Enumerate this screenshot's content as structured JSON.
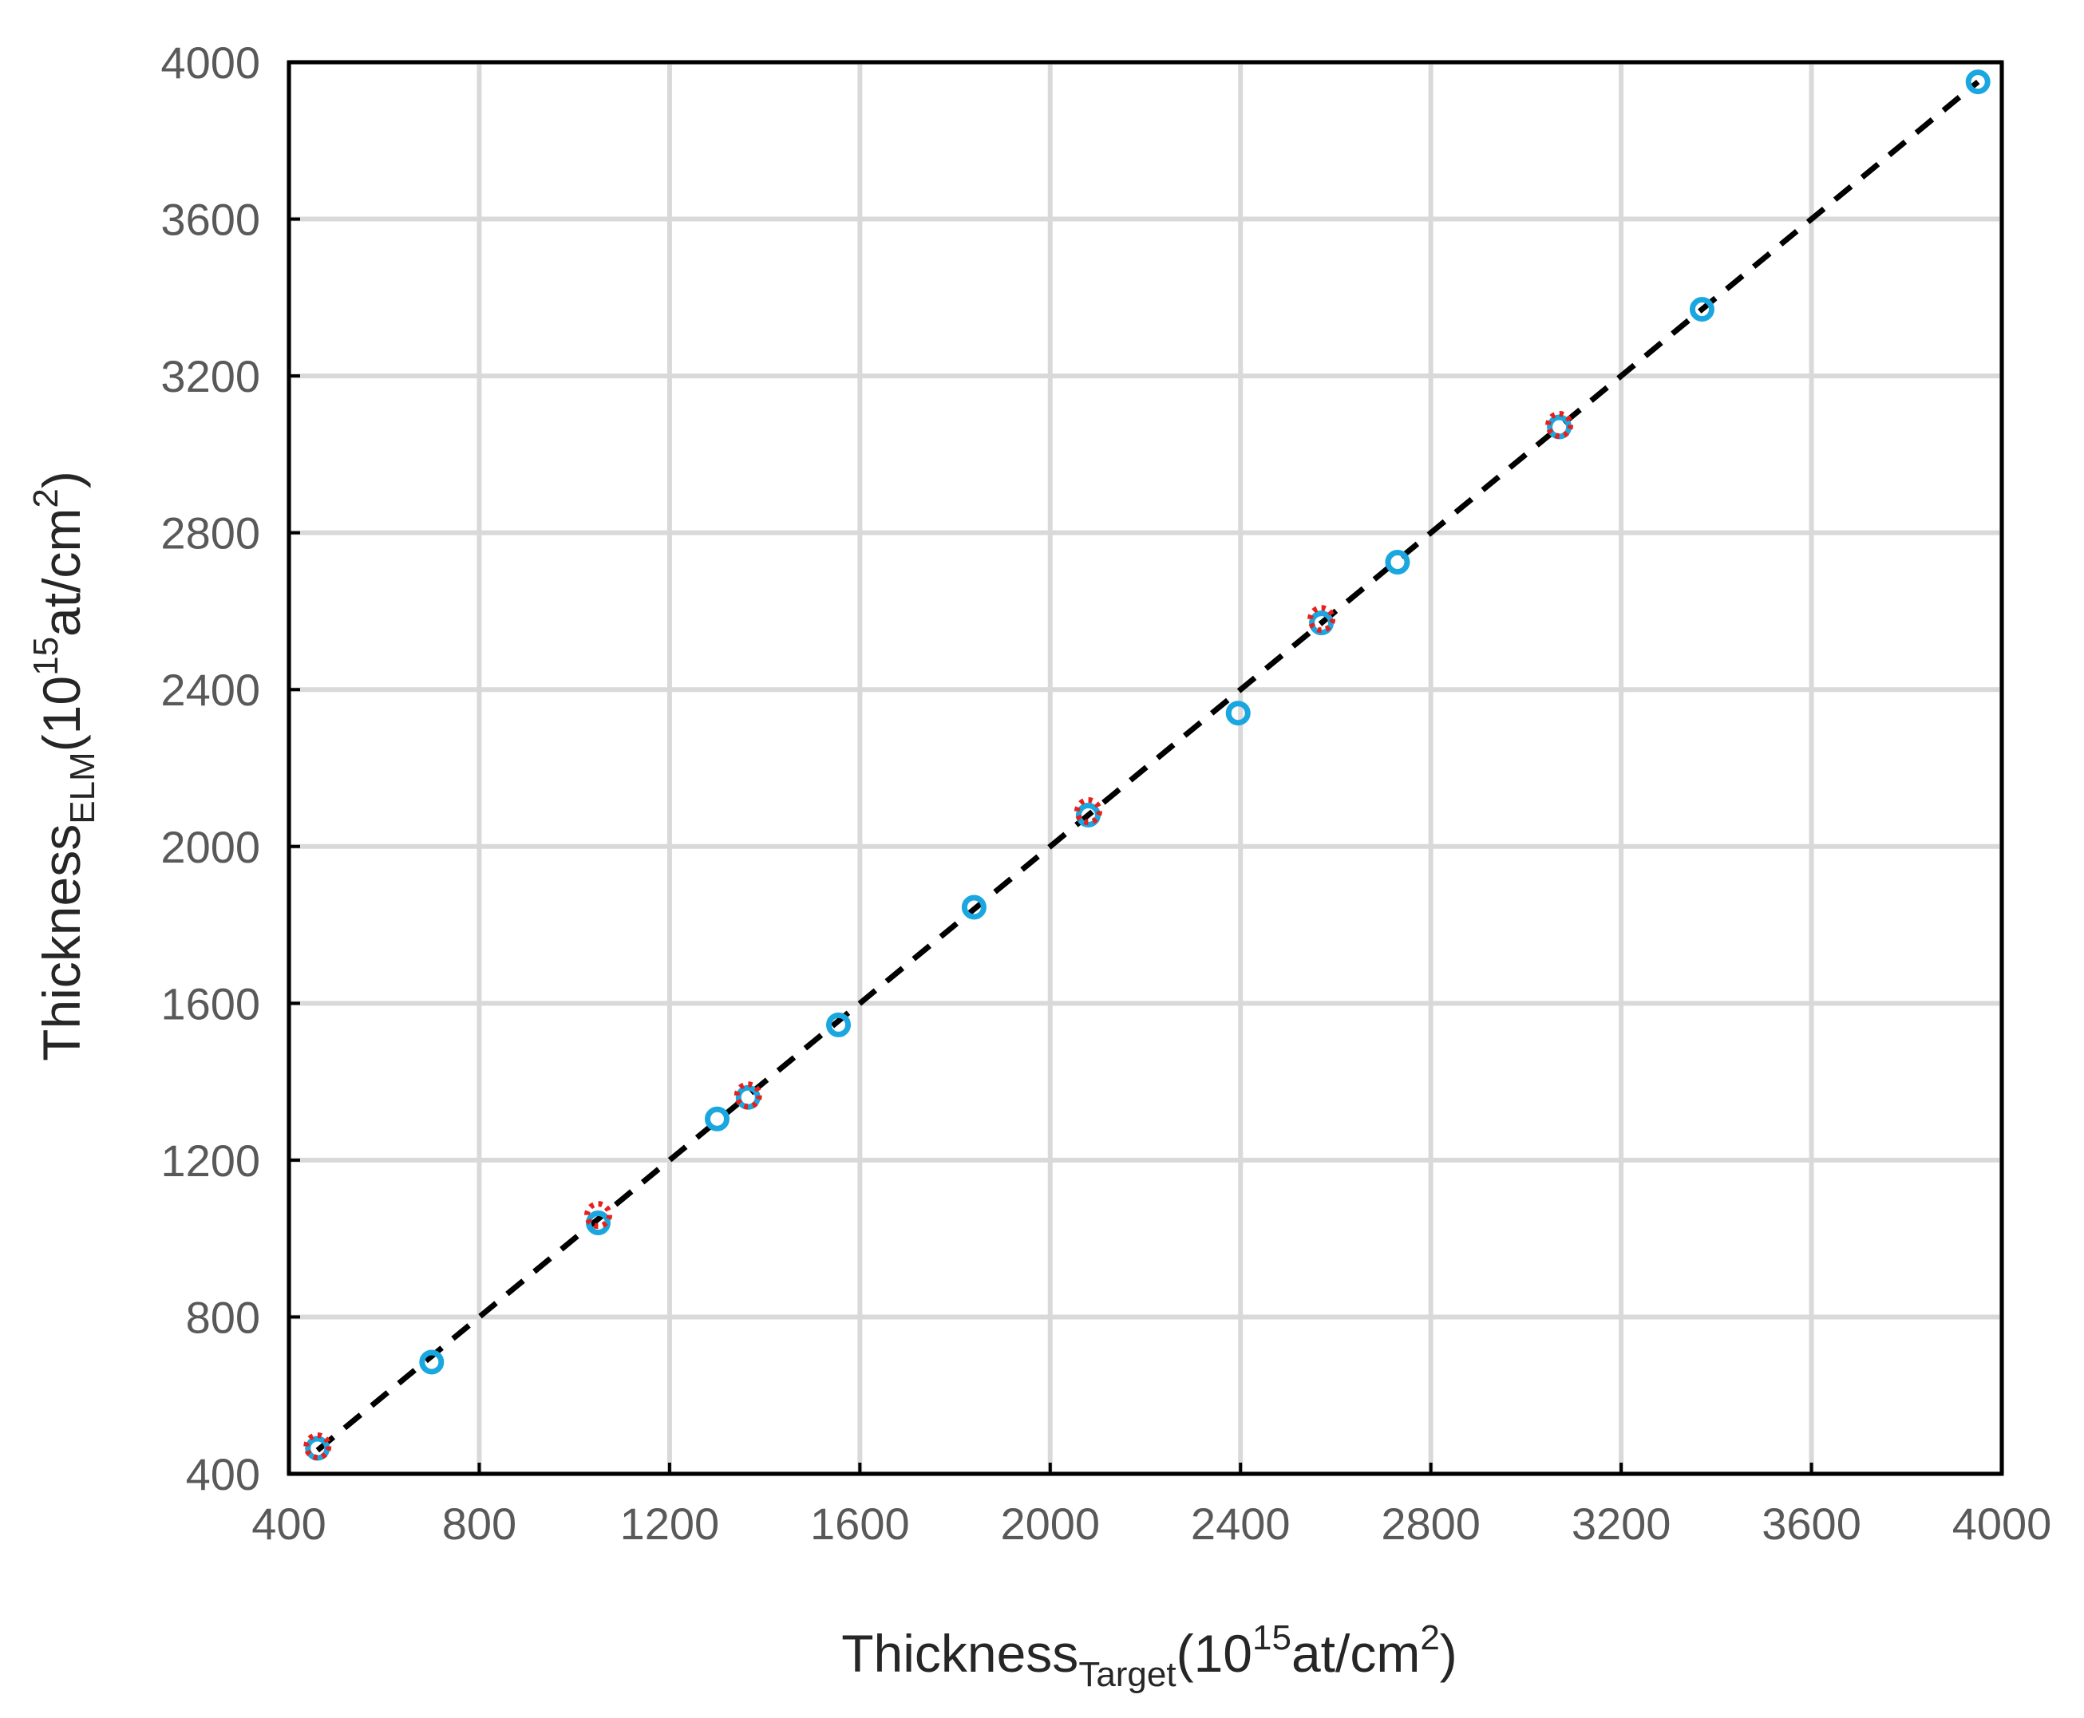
{
  "chart_data": {
    "type": "scatter",
    "title": "",
    "xlabel": {
      "main": "Thickness",
      "sub": "Target",
      "tail_open": "(10",
      "sup": "15",
      "tail_mid": "at/cm",
      "sup2": "2",
      "tail_close": ")"
    },
    "ylabel": {
      "main": "Thickness",
      "sub": "ELM",
      "tail_open": "(10",
      "sup": "15",
      "tail_mid": "at/cm",
      "sup2": "2",
      "tail_close": ")"
    },
    "xlim": [
      400,
      4000
    ],
    "ylim": [
      400,
      4000
    ],
    "xticks": [
      400,
      800,
      1200,
      1600,
      2000,
      2400,
      2800,
      3200,
      3600,
      4000
    ],
    "yticks": [
      400,
      800,
      1200,
      1600,
      2000,
      2400,
      2800,
      3200,
      3600,
      4000
    ],
    "grid": true,
    "series": [
      {
        "color": "#1aa7e0",
        "marker": "open-circle",
        "points": [
          [
            460,
            465
          ],
          [
            700,
            685
          ],
          [
            1050,
            1040
          ],
          [
            1300,
            1305
          ],
          [
            1365,
            1360
          ],
          [
            1555,
            1545
          ],
          [
            1840,
            1845
          ],
          [
            2080,
            2080
          ],
          [
            2395,
            2340
          ],
          [
            2570,
            2570
          ],
          [
            2730,
            2725
          ],
          [
            3070,
            3070
          ],
          [
            3370,
            3370
          ],
          [
            3950,
            3950
          ]
        ]
      },
      {
        "color": "#e8201c",
        "marker": "dotted-open-circle",
        "points": [
          [
            460,
            470
          ],
          [
            1050,
            1060
          ],
          [
            1365,
            1365
          ],
          [
            2080,
            2090
          ],
          [
            2570,
            2580
          ],
          [
            3070,
            3075
          ]
        ]
      }
    ],
    "reference_line": {
      "style": "dashed",
      "color": "#000000",
      "from": [
        460,
        460
      ],
      "to": [
        3950,
        3950
      ]
    }
  }
}
